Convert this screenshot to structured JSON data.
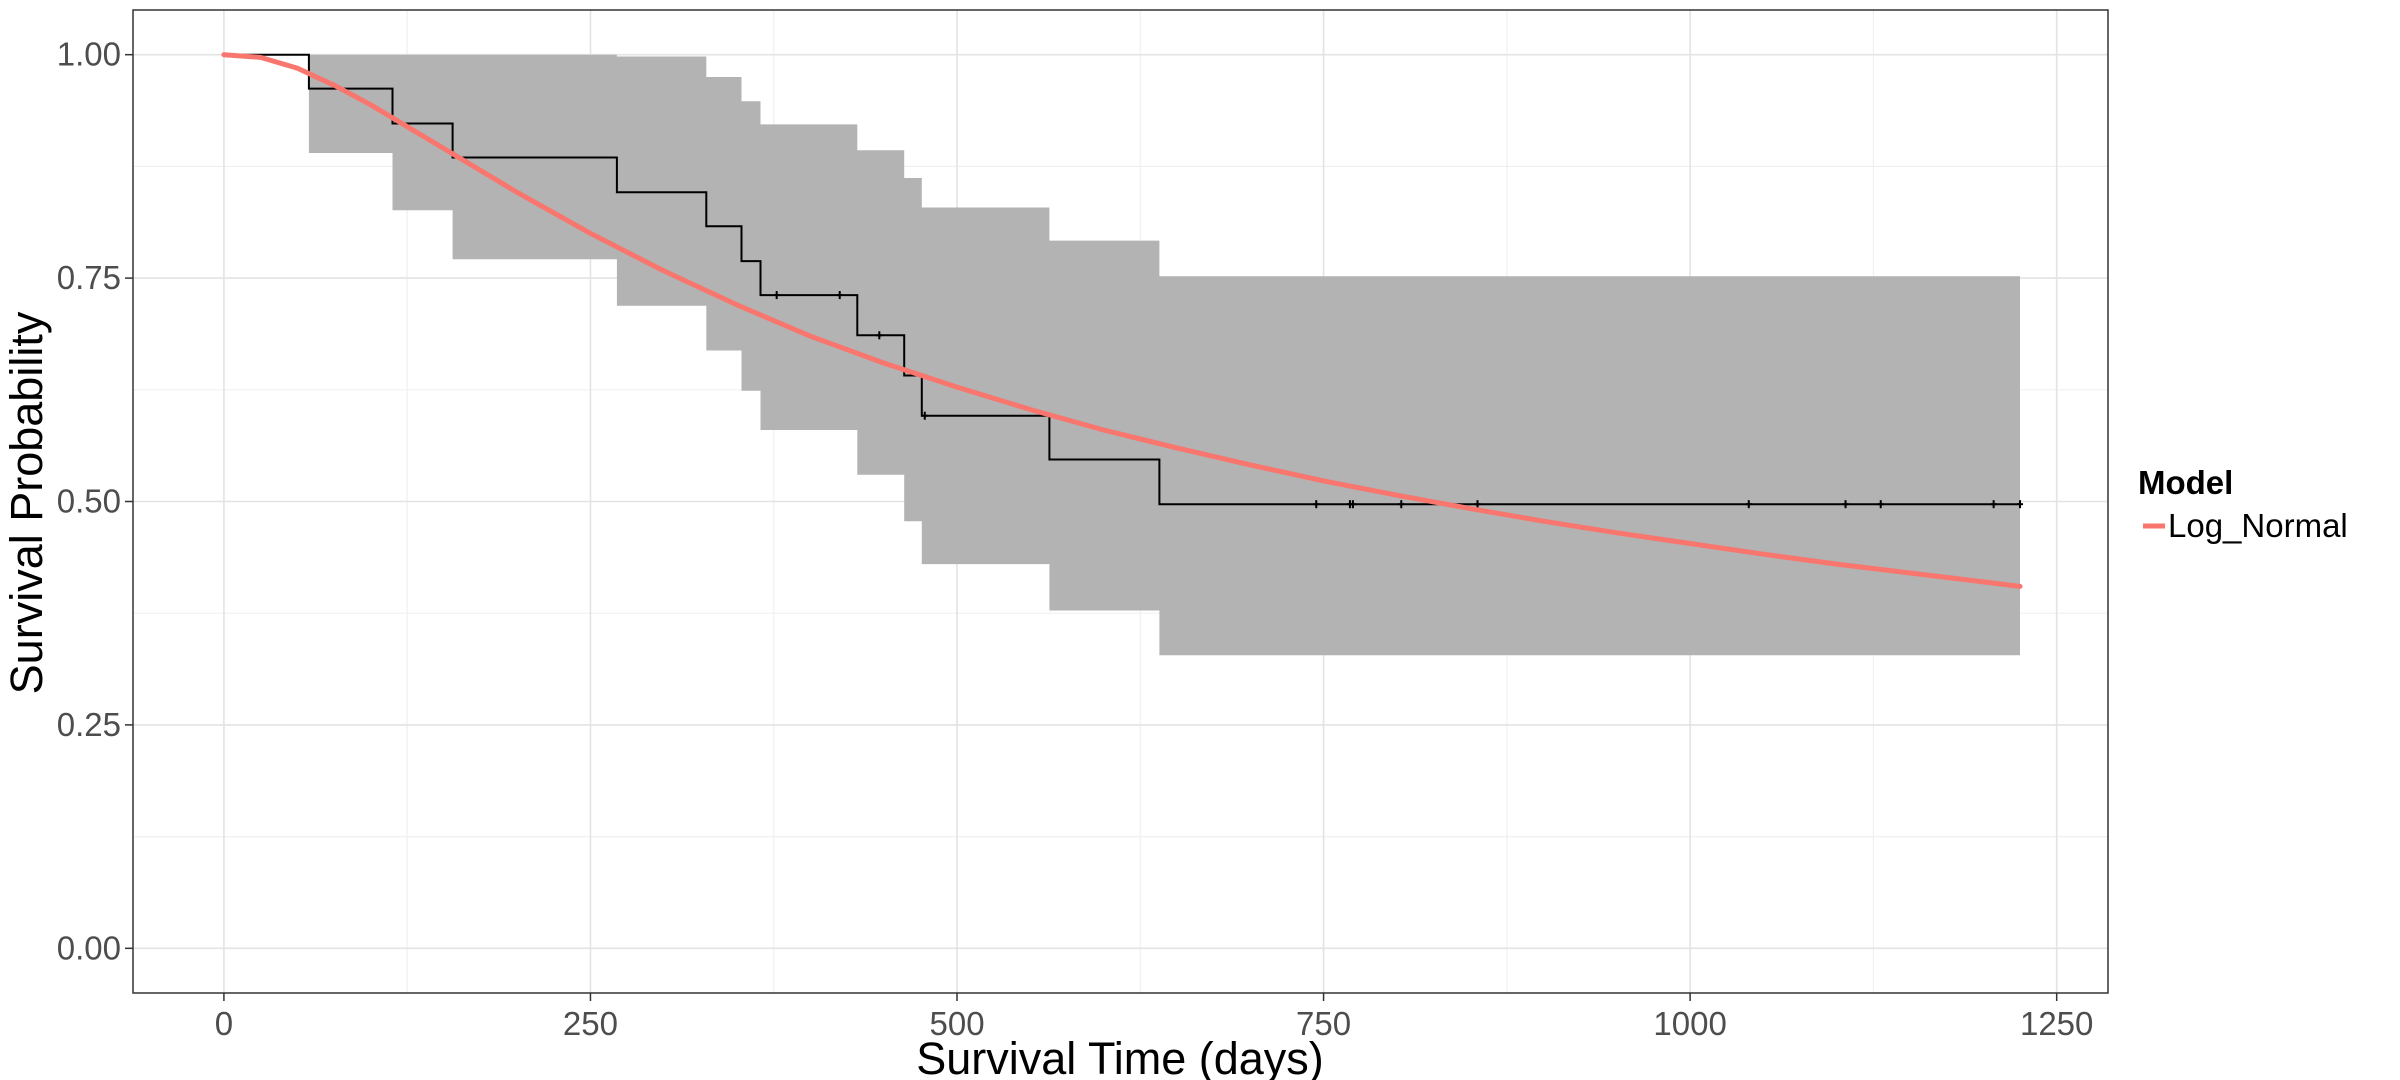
{
  "chart_data": {
    "type": "line",
    "xlabel": "Survival Time (days)",
    "ylabel": "Survival Probability",
    "xlim": [
      -62,
      1285
    ],
    "ylim": [
      -0.05,
      1.05
    ],
    "x_ticks": [
      0,
      250,
      500,
      750,
      1000,
      1250
    ],
    "x_tick_labels": [
      "0",
      "250",
      "500",
      "750",
      "1000",
      "1250"
    ],
    "y_ticks": [
      0,
      0.25,
      0.5,
      0.75,
      1.0
    ],
    "y_tick_labels": [
      "0.00",
      "0.25",
      "0.50",
      "0.75",
      "1.00"
    ],
    "grid": true,
    "legend": {
      "title": "Model",
      "position": "right",
      "entries": [
        {
          "label": "Log_Normal",
          "color": "#F8766D"
        }
      ]
    },
    "kaplan_meier": {
      "color": "#000000",
      "steps": [
        [
          0,
          1.0
        ],
        [
          58,
          0.962
        ],
        [
          115,
          0.923
        ],
        [
          156,
          0.885
        ],
        [
          268,
          0.846
        ],
        [
          329,
          0.808
        ],
        [
          353,
          0.769
        ],
        [
          366,
          0.731
        ],
        [
          432,
          0.686
        ],
        [
          464,
          0.641
        ],
        [
          476,
          0.596
        ],
        [
          563,
          0.547
        ],
        [
          638,
          0.497
        ],
        [
          1225,
          0.497
        ]
      ],
      "censor_marks": [
        [
          377,
          0.731
        ],
        [
          420,
          0.731
        ],
        [
          447,
          0.686
        ],
        [
          478,
          0.596
        ],
        [
          745,
          0.497
        ],
        [
          768,
          0.497
        ],
        [
          770,
          0.497
        ],
        [
          803,
          0.497
        ],
        [
          855,
          0.497
        ],
        [
          1040,
          0.497
        ],
        [
          1106,
          0.497
        ],
        [
          1130,
          0.497
        ],
        [
          1207,
          0.497
        ],
        [
          1225,
          0.497
        ]
      ]
    },
    "confidence_band": {
      "color": "#b3b3b3",
      "steps": [
        [
          0,
          1.0,
          1.0
        ],
        [
          58,
          0.89,
          1.0
        ],
        [
          115,
          0.826,
          1.0
        ],
        [
          156,
          0.771,
          1.0
        ],
        [
          268,
          0.719,
          0.998
        ],
        [
          329,
          0.669,
          0.975
        ],
        [
          353,
          0.624,
          0.948
        ],
        [
          366,
          0.58,
          0.922
        ],
        [
          432,
          0.53,
          0.893
        ],
        [
          464,
          0.478,
          0.862
        ],
        [
          476,
          0.43,
          0.829
        ],
        [
          563,
          0.378,
          0.792
        ],
        [
          638,
          0.328,
          0.752
        ],
        [
          1225,
          0.328,
          0.752
        ]
      ]
    },
    "series": [
      {
        "name": "Log_Normal",
        "color": "#F8766D",
        "x": [
          0,
          25,
          50,
          75,
          100,
          150,
          200,
          250,
          300,
          350,
          400,
          450,
          500,
          550,
          600,
          650,
          700,
          750,
          800,
          850,
          900,
          950,
          1000,
          1050,
          1100,
          1150,
          1200,
          1225
        ],
        "values": [
          1.0,
          0.997,
          0.985,
          0.966,
          0.944,
          0.895,
          0.846,
          0.8,
          0.758,
          0.72,
          0.685,
          0.655,
          0.628,
          0.603,
          0.58,
          0.56,
          0.541,
          0.523,
          0.507,
          0.492,
          0.478,
          0.465,
          0.453,
          0.441,
          0.43,
          0.42,
          0.41,
          0.405
        ]
      }
    ]
  }
}
